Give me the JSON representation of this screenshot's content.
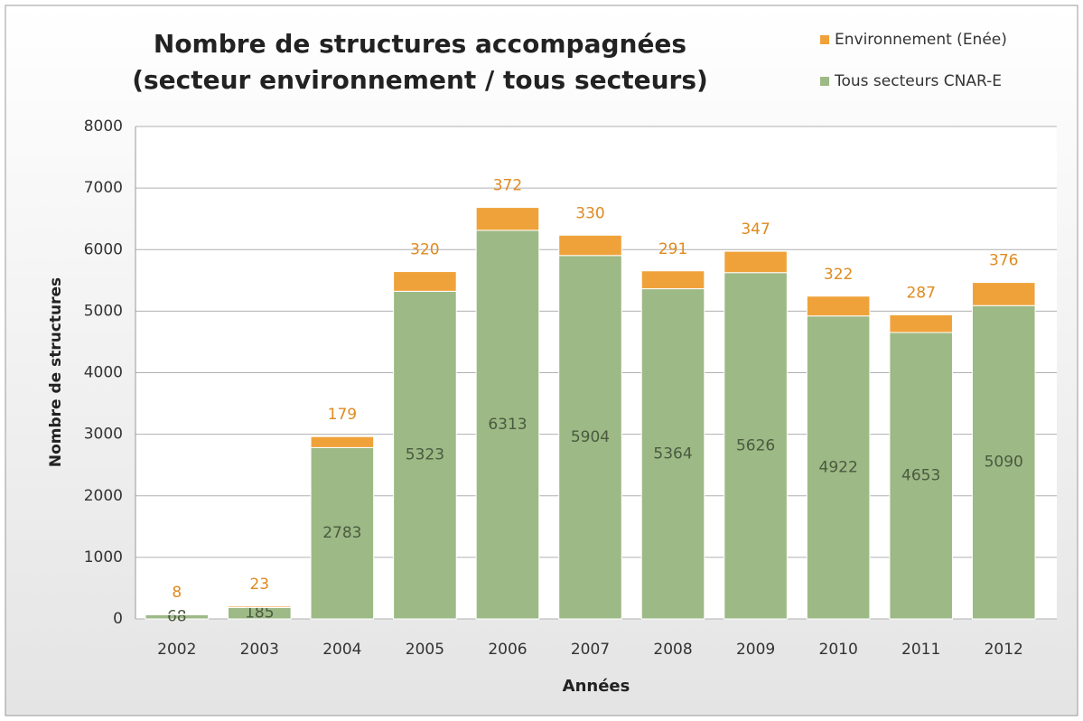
{
  "chart_data": {
    "type": "stacked_bar",
    "title": "Nombre de structures accompagnées",
    "subtitle": "(secteur environnement / tous secteurs)",
    "x_label": "Années",
    "y_label": "Nombre de structures",
    "categories": [
      "2002",
      "2003",
      "2004",
      "2005",
      "2006",
      "2007",
      "2008",
      "2009",
      "2010",
      "2011",
      "2012"
    ],
    "series": [
      {
        "name": "Tous secteurs CNAR-E",
        "color": "#9db985",
        "values": [
          68,
          185,
          2783,
          5323,
          6313,
          5904,
          5364,
          5626,
          4922,
          4653,
          5090
        ]
      },
      {
        "name": "Environnement (Enée)",
        "color": "#f0a23a",
        "values": [
          8,
          23,
          179,
          320,
          372,
          330,
          291,
          347,
          322,
          287,
          376
        ]
      }
    ],
    "ylim": [
      0,
      8000
    ],
    "yticks": [
      0,
      1000,
      2000,
      3000,
      4000,
      5000,
      6000,
      7000,
      8000
    ],
    "grid": true
  }
}
